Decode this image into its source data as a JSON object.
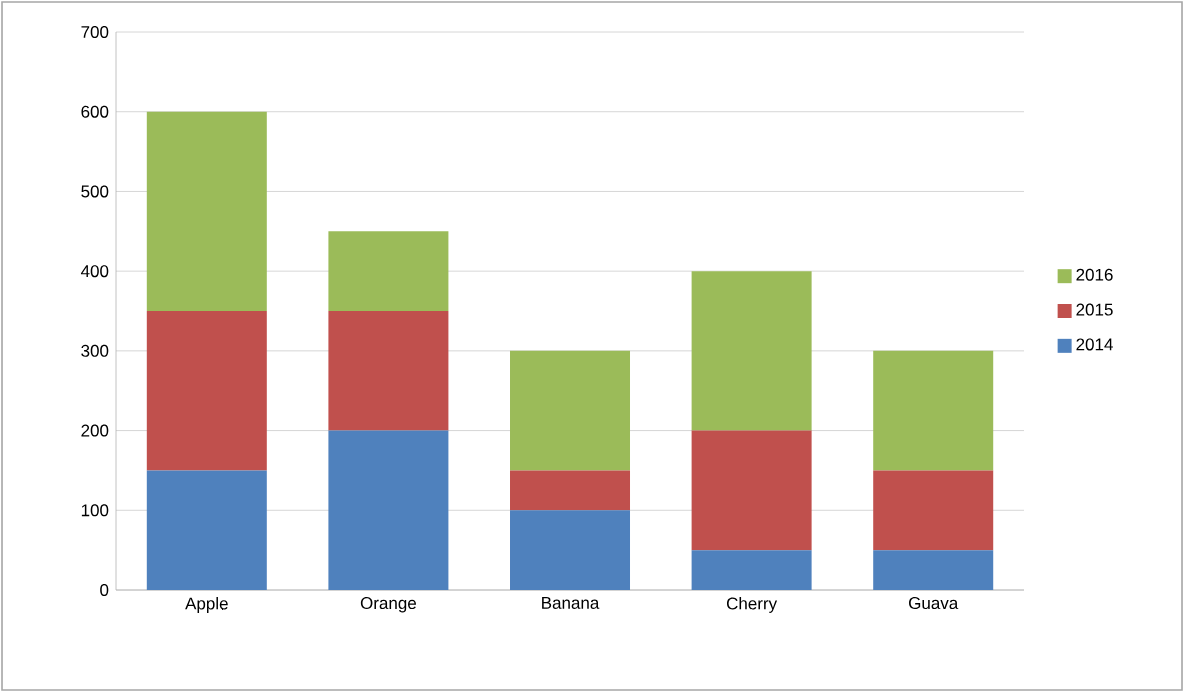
{
  "chart_data": {
    "type": "bar",
    "stacked": true,
    "categories": [
      "Apple",
      "Orange",
      "Banana",
      "Cherry",
      "Guava"
    ],
    "series": [
      {
        "name": "2014",
        "color": "#4f81bd",
        "values": [
          150,
          200,
          100,
          50,
          50
        ]
      },
      {
        "name": "2015",
        "color": "#c0504d",
        "values": [
          200,
          150,
          50,
          150,
          100
        ]
      },
      {
        "name": "2016",
        "color": "#9bbb59",
        "values": [
          250,
          100,
          150,
          200,
          150
        ]
      }
    ],
    "ylim": [
      0,
      700
    ],
    "yticks": [
      0,
      100,
      200,
      300,
      400,
      500,
      600,
      700
    ],
    "grid": "y",
    "legend": "right"
  }
}
